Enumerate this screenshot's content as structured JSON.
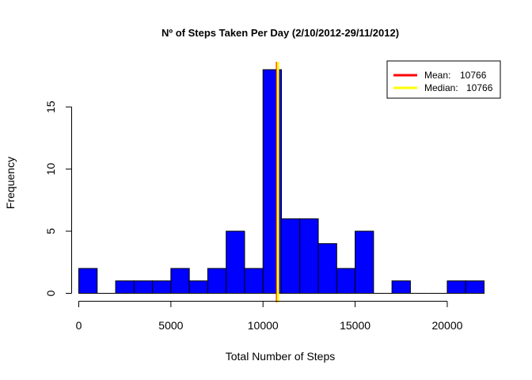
{
  "chart_data": {
    "type": "bar",
    "title": "Nº of Steps Taken Per Day (2/10/2012-29/11/2012)",
    "xlabel": "Total Number of Steps",
    "ylabel": "Frequency",
    "xlim": [
      0,
      22000
    ],
    "ylim": [
      0,
      18
    ],
    "x_ticks": [
      0,
      5000,
      10000,
      15000,
      20000
    ],
    "y_ticks": [
      0,
      5,
      10,
      15
    ],
    "bin_width": 1000,
    "bins": [
      {
        "start": 0,
        "end": 1000,
        "count": 2
      },
      {
        "start": 1000,
        "end": 2000,
        "count": 0
      },
      {
        "start": 2000,
        "end": 3000,
        "count": 1
      },
      {
        "start": 3000,
        "end": 4000,
        "count": 1
      },
      {
        "start": 4000,
        "end": 5000,
        "count": 1
      },
      {
        "start": 5000,
        "end": 6000,
        "count": 2
      },
      {
        "start": 6000,
        "end": 7000,
        "count": 1
      },
      {
        "start": 7000,
        "end": 8000,
        "count": 2
      },
      {
        "start": 8000,
        "end": 9000,
        "count": 5
      },
      {
        "start": 9000,
        "end": 10000,
        "count": 2
      },
      {
        "start": 10000,
        "end": 11000,
        "count": 18
      },
      {
        "start": 11000,
        "end": 12000,
        "count": 6
      },
      {
        "start": 12000,
        "end": 13000,
        "count": 6
      },
      {
        "start": 13000,
        "end": 14000,
        "count": 4
      },
      {
        "start": 14000,
        "end": 15000,
        "count": 2
      },
      {
        "start": 15000,
        "end": 16000,
        "count": 5
      },
      {
        "start": 16000,
        "end": 17000,
        "count": 0
      },
      {
        "start": 17000,
        "end": 18000,
        "count": 1
      },
      {
        "start": 18000,
        "end": 19000,
        "count": 0
      },
      {
        "start": 19000,
        "end": 20000,
        "count": 0
      },
      {
        "start": 20000,
        "end": 21000,
        "count": 1
      },
      {
        "start": 21000,
        "end": 22000,
        "count": 1
      }
    ],
    "bar_color": "#0000ff",
    "reference_lines": [
      {
        "name": "Mean:",
        "value": 10766,
        "label_value": "10766",
        "color": "#ff0000"
      },
      {
        "name": "Median:",
        "value": 10766,
        "label_value": "10766",
        "color": "#ffff00"
      }
    ],
    "legend_position": "top-right",
    "grid": false
  }
}
